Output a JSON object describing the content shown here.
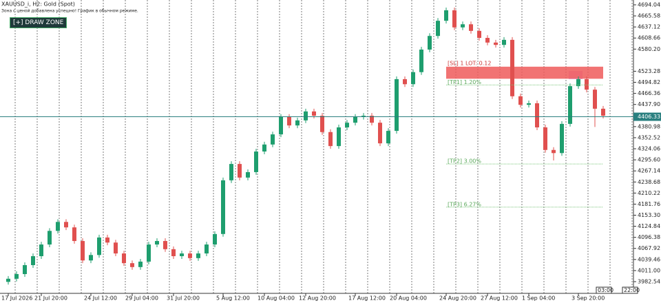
{
  "chart_data": {
    "type": "candlestick",
    "title": "XAUUSD_i, H2:  Gold (Spot)",
    "subtitle": "Зона с ценой добавлена успешно! График в обычном режиме.",
    "up_color": "#1e9e6e",
    "down_color": "#e0504f",
    "categories": [
      "17 Jul 2026",
      null,
      null,
      null,
      "21 Jul 20:00",
      null,
      null,
      null,
      null,
      null,
      "24 Jul 12:00",
      null,
      null,
      null,
      null,
      "29 Jul 04:00",
      null,
      null,
      null,
      null,
      "31 Jul 20:00",
      null,
      null,
      null,
      null,
      null,
      "5 Aug 12:00",
      null,
      null,
      null,
      null,
      "10 Aug 04:00",
      null,
      null,
      null,
      null,
      "12 Aug 20:00",
      null,
      null,
      null,
      null,
      null,
      "17 Aug 12:00",
      null,
      null,
      null,
      null,
      "20 Aug 04:00",
      null,
      null,
      null,
      null,
      null,
      "24 Aug 20:00",
      null,
      null,
      null,
      null,
      "27 Aug 12:00",
      null,
      null,
      null,
      null,
      "1 Sep 04:00",
      null,
      null,
      null,
      null,
      null,
      "3 Sep 20:00",
      null,
      null,
      null
    ],
    "open": [
      3982,
      3990,
      4002,
      4025,
      4048,
      4078,
      4113,
      4136,
      4122,
      4087,
      4037,
      4051,
      4096,
      4083,
      4055,
      4030,
      4020,
      4034,
      4078,
      4087,
      4066,
      4048,
      4055,
      4043,
      4055,
      4078,
      4105,
      4243,
      4285,
      4250,
      4264,
      4317,
      4335,
      4361,
      4406,
      4384,
      4397,
      4420,
      4409,
      4367,
      4331,
      4379,
      4391,
      4406,
      4409,
      4391,
      4338,
      4370,
      4503,
      4490,
      4521,
      4579,
      4614,
      4653,
      4680,
      4636,
      4644,
      4627,
      4609,
      4597,
      4591,
      4604,
      4459,
      4437,
      4441,
      4379,
      4321,
      4313,
      4388,
      4485,
      4503,
      4476,
      4427
    ],
    "high": [
      3997,
      4009,
      4032,
      4055,
      4085,
      4120,
      4143,
      4143,
      4129,
      4094,
      4058,
      4103,
      4103,
      4090,
      4062,
      4037,
      4041,
      4085,
      4094,
      4094,
      4073,
      4062,
      4062,
      4062,
      4085,
      4112,
      4250,
      4292,
      4292,
      4271,
      4324,
      4342,
      4368,
      4413,
      4413,
      4404,
      4427,
      4427,
      4416,
      4374,
      4386,
      4398,
      4413,
      4416,
      4416,
      4398,
      4377,
      4510,
      4510,
      4528,
      4586,
      4621,
      4660,
      4687,
      4687,
      4651,
      4651,
      4634,
      4616,
      4604,
      4611,
      4611,
      4466,
      4448,
      4448,
      4386,
      4328,
      4395,
      4492,
      4510,
      4510,
      4483,
      4434
    ],
    "low": [
      3975,
      3983,
      3995,
      4018,
      4041,
      4071,
      4106,
      4115,
      4080,
      4030,
      4030,
      4044,
      4076,
      4048,
      4023,
      4013,
      4013,
      4027,
      4071,
      4059,
      4041,
      4041,
      4036,
      4036,
      4048,
      4071,
      4098,
      4236,
      4243,
      4243,
      4257,
      4310,
      4328,
      4354,
      4377,
      4377,
      4390,
      4402,
      4360,
      4324,
      4324,
      4372,
      4384,
      4399,
      4384,
      4331,
      4331,
      4363,
      4483,
      4483,
      4514,
      4572,
      4607,
      4646,
      4629,
      4629,
      4620,
      4602,
      4590,
      4584,
      4584,
      4452,
      4430,
      4430,
      4372,
      4314,
      4294,
      4306,
      4381,
      4478,
      4469,
      4380,
      4402
    ],
    "close": [
      3990,
      4002,
      4025,
      4048,
      4078,
      4113,
      4136,
      4122,
      4087,
      4037,
      4051,
      4096,
      4083,
      4055,
      4030,
      4020,
      4034,
      4078,
      4087,
      4066,
      4048,
      4055,
      4043,
      4055,
      4078,
      4105,
      4243,
      4285,
      4250,
      4264,
      4317,
      4335,
      4361,
      4406,
      4384,
      4397,
      4420,
      4409,
      4367,
      4331,
      4379,
      4391,
      4406,
      4409,
      4391,
      4338,
      4370,
      4503,
      4490,
      4521,
      4579,
      4614,
      4653,
      4680,
      4636,
      4644,
      4627,
      4609,
      4597,
      4591,
      4604,
      4459,
      4437,
      4441,
      4379,
      4321,
      4313,
      4388,
      4485,
      4503,
      4476,
      4427,
      4409
    ],
    "ylim": [
      3954.2,
      4706.4
    ],
    "yticks": [
      4694.04,
      4665.58,
      4637.12,
      4608.66,
      {
        "value": 4580.2,
        "label": "4580.20"
      },
      4523.28,
      4494.82,
      4466.36,
      {
        "value": 4437.9,
        "label": "4437.90"
      },
      4380.98,
      4352.52,
      4324.06,
      {
        "value": 4295.6,
        "label": "4295.60"
      },
      4267.14,
      4238.68,
      4210.22,
      4181.76,
      {
        "value": 4153.3,
        "label": "4153.30"
      },
      4124.84,
      4096.38,
      4067.92,
      4039.46,
      {
        "value": 4011.0,
        "label": "4011.00"
      },
      3982.54
    ],
    "current_price": 4406.33,
    "zone": {
      "label": "[SL] 1 LOT: 0.12",
      "top": 4535,
      "bottom": 4504,
      "color": "#ee5a5a"
    },
    "levels": [
      {
        "label": "[TP1] 1.20%",
        "value": 4488
      },
      {
        "label": "[TP2] 3.00%",
        "value": 4285
      },
      {
        "label": "[TP3] 6.27%",
        "value": 4174
      }
    ],
    "time_markers": [
      "03:00",
      "22:00"
    ]
  },
  "controls": {
    "draw_zone": "[+] DRAW ZONE"
  }
}
